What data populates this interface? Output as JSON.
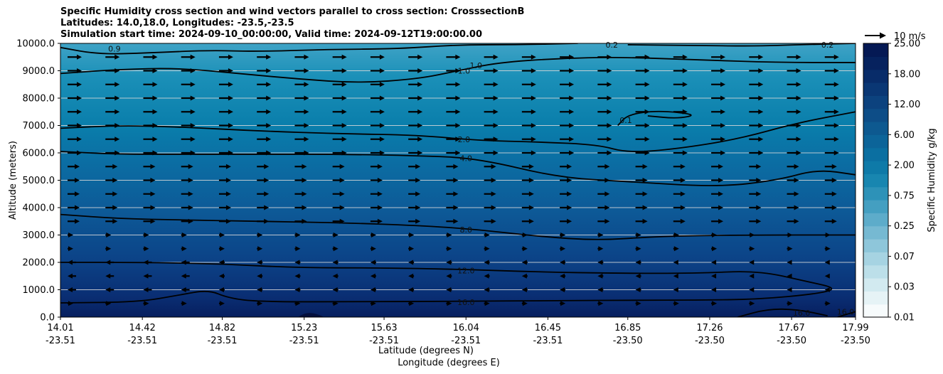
{
  "chart_data": {
    "type": "contourf",
    "title_lines": [
      "Specific Humidity cross section and wind vectors parallel to cross section: CrosssectionB",
      "Latitudes: 14.0,18.0, Longitudes: -23.5,-23.5",
      "Simulation start time: 2024-09-10_00:00:00, Valid time: 2024-09-12T19:00:00.00"
    ],
    "xlabel_lat": "Latitude (degrees N)",
    "xlabel_lon": "Longitude (degrees E)",
    "ylabel": "Altitude (meters)",
    "ylim": [
      0,
      10000
    ],
    "xlim": [
      14.01,
      17.99
    ],
    "x_ticks": [
      {
        "lat": "14.01",
        "lon": "-23.51",
        "pos": 14.01
      },
      {
        "lat": "14.42",
        "lon": "-23.51",
        "pos": 14.42
      },
      {
        "lat": "14.82",
        "lon": "-23.51",
        "pos": 14.82
      },
      {
        "lat": "15.23",
        "lon": "-23.51",
        "pos": 15.23
      },
      {
        "lat": "15.63",
        "lon": "-23.51",
        "pos": 15.63
      },
      {
        "lat": "16.04",
        "lon": "-23.51",
        "pos": 16.04
      },
      {
        "lat": "16.45",
        "lon": "-23.51",
        "pos": 16.45
      },
      {
        "lat": "16.85",
        "lon": "-23.50",
        "pos": 16.85
      },
      {
        "lat": "17.26",
        "lon": "-23.50",
        "pos": 17.26
      },
      {
        "lat": "17.67",
        "lon": "-23.50",
        "pos": 17.67
      },
      {
        "lat": "17.99",
        "lon": "-23.50",
        "pos": 17.99
      }
    ],
    "y_ticks": [
      "0.0",
      "1000.0",
      "2000.0",
      "3000.0",
      "4000.0",
      "5000.0",
      "6000.0",
      "7000.0",
      "8000.0",
      "9000.0",
      "10000.0"
    ],
    "colorbar": {
      "label": "Specific Humidity g/kg",
      "tick_labels": [
        "0.01",
        "0.03",
        "0.07",
        "0.25",
        "0.75",
        "2.00",
        "6.00",
        "12.00",
        "18.00",
        "25.00"
      ]
    },
    "quiver_key": "10 m/s",
    "contour_labels": [
      {
        "text": "0.9",
        "x": 14.28,
        "y": 9800
      },
      {
        "text": "1.0",
        "x": 16.03,
        "y": 9000
      },
      {
        "text": "1.0",
        "x": 16.09,
        "y": 9200
      },
      {
        "text": "0.2",
        "x": 16.77,
        "y": 9950
      },
      {
        "text": "0.2",
        "x": 17.85,
        "y": 9950
      },
      {
        "text": "0.1",
        "x": 16.84,
        "y": 7200
      },
      {
        "text": "2.0",
        "x": 16.03,
        "y": 6500
      },
      {
        "text": "4.0",
        "x": 16.04,
        "y": 5800
      },
      {
        "text": "8.0",
        "x": 16.04,
        "y": 3200
      },
      {
        "text": "12.0",
        "x": 16.04,
        "y": 1700
      },
      {
        "text": "16.0",
        "x": 16.04,
        "y": 550
      },
      {
        "text": "16.0",
        "x": 17.72,
        "y": 150
      },
      {
        "text": "16.0",
        "x": 17.94,
        "y": 200
      }
    ],
    "contour_lines": [
      {
        "level": "0.9",
        "points": [
          [
            14.01,
            9850
          ],
          [
            14.2,
            9600
          ],
          [
            14.45,
            9650
          ],
          [
            14.75,
            9750
          ],
          [
            15.0,
            9700
          ],
          [
            15.35,
            9780
          ],
          [
            15.7,
            9800
          ],
          [
            16.0,
            9950
          ],
          [
            16.3,
            9950
          ],
          [
            16.6,
            10000
          ]
        ]
      },
      {
        "level": "1.0",
        "points": [
          [
            14.01,
            8900
          ],
          [
            14.3,
            9050
          ],
          [
            14.6,
            9100
          ],
          [
            14.9,
            8900
          ],
          [
            15.2,
            8700
          ],
          [
            15.5,
            8550
          ],
          [
            15.8,
            8700
          ],
          [
            16.0,
            9000
          ],
          [
            16.2,
            9300
          ],
          [
            16.5,
            9450
          ],
          [
            16.8,
            9500
          ],
          [
            17.2,
            9400
          ],
          [
            17.6,
            9300
          ],
          [
            17.99,
            9300
          ]
        ]
      },
      {
        "level": "0.2",
        "points": [
          [
            16.85,
            9950
          ],
          [
            17.2,
            9920
          ],
          [
            17.5,
            9900
          ],
          [
            17.7,
            9950
          ],
          [
            17.99,
            10000
          ]
        ]
      },
      {
        "level": "0.1",
        "points": [
          [
            16.8,
            7000
          ],
          [
            16.85,
            7400
          ],
          [
            17.0,
            7550
          ],
          [
            17.2,
            7400
          ],
          [
            17.1,
            7250
          ],
          [
            16.95,
            7350
          ]
        ]
      },
      {
        "level": "2.0",
        "points": [
          [
            14.01,
            6900
          ],
          [
            14.3,
            7000
          ],
          [
            14.6,
            6950
          ],
          [
            15.0,
            6800
          ],
          [
            15.4,
            6700
          ],
          [
            15.8,
            6650
          ],
          [
            16.1,
            6450
          ],
          [
            16.4,
            6400
          ],
          [
            16.7,
            6300
          ],
          [
            16.85,
            6000
          ],
          [
            17.1,
            6150
          ],
          [
            17.4,
            6500
          ],
          [
            17.7,
            7100
          ],
          [
            17.99,
            7500
          ]
        ]
      },
      {
        "level": "4.0",
        "points": [
          [
            14.01,
            6050
          ],
          [
            14.3,
            5950
          ],
          [
            14.6,
            5950
          ],
          [
            15.0,
            5950
          ],
          [
            15.4,
            5950
          ],
          [
            15.8,
            5900
          ],
          [
            16.1,
            5800
          ],
          [
            16.5,
            5100
          ],
          [
            16.85,
            4950
          ],
          [
            17.3,
            4750
          ],
          [
            17.6,
            5000
          ],
          [
            17.8,
            5400
          ],
          [
            17.99,
            5200
          ]
        ]
      },
      {
        "level": "8.0",
        "points": [
          [
            14.01,
            3750
          ],
          [
            14.3,
            3600
          ],
          [
            14.6,
            3550
          ],
          [
            15.0,
            3500
          ],
          [
            15.4,
            3450
          ],
          [
            15.8,
            3350
          ],
          [
            16.1,
            3200
          ],
          [
            16.4,
            2950
          ],
          [
            16.7,
            2800
          ],
          [
            17.0,
            2950
          ],
          [
            17.4,
            3000
          ],
          [
            17.99,
            3000
          ]
        ]
      },
      {
        "level": "12.0",
        "points": [
          [
            14.01,
            2000
          ],
          [
            14.4,
            2000
          ],
          [
            14.8,
            1950
          ],
          [
            15.2,
            1800
          ],
          [
            15.6,
            1800
          ],
          [
            16.0,
            1750
          ],
          [
            16.4,
            1650
          ],
          [
            16.8,
            1600
          ],
          [
            17.2,
            1600
          ],
          [
            17.5,
            1700
          ],
          [
            17.75,
            1300
          ],
          [
            17.9,
            1050
          ],
          [
            17.8,
            850
          ],
          [
            17.5,
            650
          ],
          [
            17.2,
            620
          ],
          [
            16.9,
            620
          ],
          [
            16.5,
            600
          ],
          [
            16.0,
            580
          ],
          [
            15.5,
            560
          ],
          [
            15.0,
            560
          ],
          [
            14.85,
            700
          ],
          [
            14.75,
            1000
          ],
          [
            14.6,
            800
          ],
          [
            14.4,
            550
          ],
          [
            14.01,
            520
          ]
        ]
      },
      {
        "level": "16.0",
        "points": [
          [
            17.4,
            0
          ],
          [
            17.55,
            300
          ],
          [
            17.7,
            280
          ],
          [
            17.85,
            50
          ]
        ]
      },
      {
        "level": "16.0",
        "points": [
          [
            17.9,
            0
          ],
          [
            17.99,
            200
          ]
        ]
      }
    ],
    "wind_vectors": "horizontal rows every 500 m; eastward in upper levels, westward near 1000-2000 m"
  }
}
